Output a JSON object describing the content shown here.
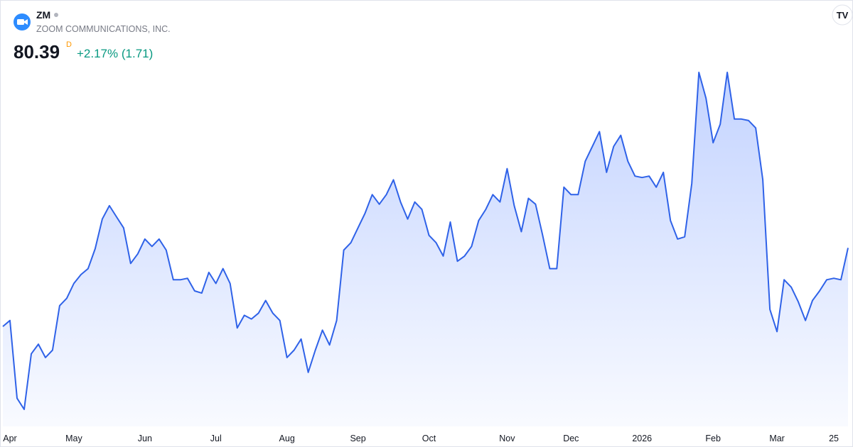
{
  "header": {
    "symbol": "ZM",
    "name": "ZOOM COMMUNICATIONS, INC.",
    "price": "80.39",
    "interval": "D",
    "change": "+2.17% (1.71)"
  },
  "chart_data": {
    "type": "area",
    "color": "#2f62e8",
    "categories": [
      null,
      "Apr",
      null,
      null,
      null,
      null,
      null,
      null,
      null,
      null,
      "May",
      null,
      null,
      null,
      null,
      null,
      null,
      null,
      null,
      null,
      "Jun",
      null,
      null,
      null,
      null,
      null,
      null,
      null,
      null,
      null,
      "Jul",
      null,
      null,
      null,
      null,
      null,
      null,
      null,
      null,
      null,
      "Aug",
      null,
      null,
      null,
      null,
      null,
      null,
      null,
      null,
      null,
      "Sep",
      null,
      null,
      null,
      null,
      null,
      null,
      null,
      null,
      null,
      "Oct",
      null,
      null,
      null,
      null,
      null,
      null,
      null,
      null,
      null,
      null,
      "Nov",
      null,
      null,
      null,
      null,
      null,
      null,
      null,
      null,
      "Dec",
      null,
      null,
      null,
      null,
      null,
      null,
      null,
      null,
      null,
      "2026",
      null,
      null,
      null,
      null,
      null,
      null,
      null,
      null,
      null,
      "Feb",
      null,
      null,
      null,
      null,
      null,
      null,
      null,
      null,
      "Mar",
      null,
      null,
      null,
      null,
      null,
      null,
      null,
      "25",
      null,
      null
    ],
    "values": [
      76.15,
      76.47,
      72.27,
      71.67,
      74.67,
      75.19,
      74.47,
      74.87,
      77.27,
      77.67,
      78.47,
      78.95,
      79.27,
      80.35,
      81.95,
      82.67,
      82.07,
      81.47,
      79.55,
      80.07,
      80.87,
      80.47,
      80.87,
      80.27,
      78.67,
      78.67,
      78.75,
      78.07,
      77.95,
      79.07,
      78.47,
      79.27,
      78.47,
      76.07,
      76.75,
      76.55,
      76.87,
      77.55,
      76.87,
      76.47,
      74.47,
      74.87,
      75.47,
      73.67,
      74.87,
      75.95,
      75.15,
      76.47,
      80.27,
      80.67,
      81.47,
      82.27,
      83.27,
      82.75,
      83.27,
      84.07,
      82.87,
      81.95,
      82.87,
      82.47,
      81.07,
      80.67,
      79.95,
      81.79,
      79.67,
      79.95,
      80.47,
      81.87,
      82.47,
      83.27,
      82.87,
      84.67,
      82.67,
      81.27,
      83.07,
      82.75,
      81.07,
      79.27,
      79.27,
      83.67,
      83.27,
      83.27,
      85.07,
      85.87,
      86.67,
      84.47,
      85.87,
      86.47,
      85.07,
      84.27,
      84.19,
      84.27,
      83.67,
      84.47,
      81.87,
      80.87,
      80.99,
      83.87,
      89.87,
      88.47,
      86.07,
      87.07,
      89.87,
      87.35,
      87.35,
      87.27,
      86.87,
      84.07,
      77.07,
      75.87,
      78.67,
      78.27,
      77.47,
      76.47,
      77.55,
      78.07,
      78.67,
      78.75,
      78.67,
      80.39
    ]
  }
}
